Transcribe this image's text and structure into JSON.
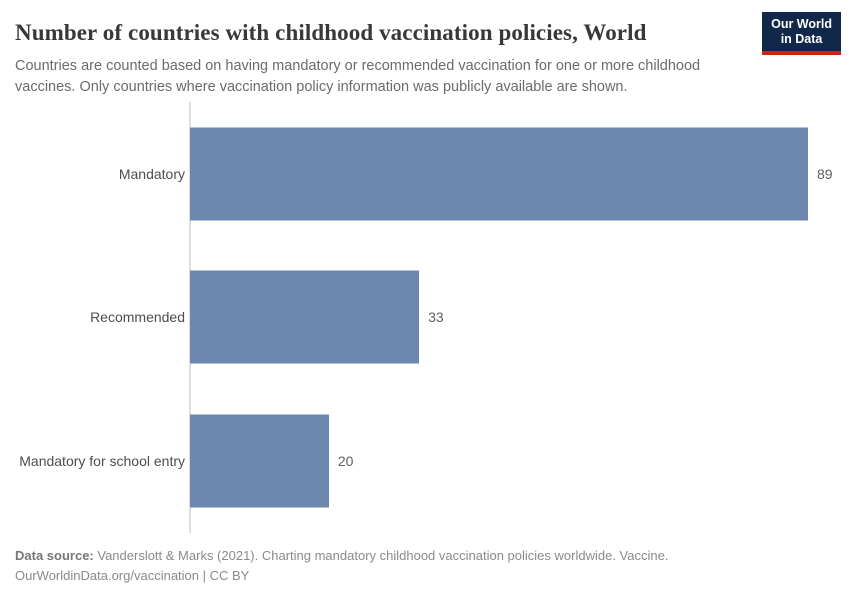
{
  "header": {
    "title": "Number of countries with childhood vaccination policies, World",
    "subtitle": "Countries are counted based on having mandatory or recommended vaccination for one or more childhood vaccines. Only countries where vaccination policy information was publicly available are shown.",
    "logo": {
      "line1": "Our World",
      "line2": "in Data"
    }
  },
  "chart_data": {
    "type": "bar",
    "orientation": "horizontal",
    "title": "Number of countries with childhood vaccination policies, World",
    "categories": [
      "Mandatory",
      "Recommended",
      "Mandatory for school entry"
    ],
    "values": [
      89,
      33,
      20
    ],
    "value_labels": [
      "89",
      "33",
      "20"
    ],
    "xlabel": "",
    "ylabel": "",
    "xlim": [
      0,
      89
    ],
    "grid": false,
    "legend": "none",
    "bar_color": "#6d87ae",
    "axis_line_color": "#dedede"
  },
  "footer": {
    "data_source_label": "Data source:",
    "data_source_text": " Vanderslott & Marks (2021). Charting mandatory childhood vaccination policies worldwide. Vaccine.",
    "attribution": "OurWorldinData.org/vaccination | CC BY"
  },
  "colors": {
    "bar": "#6d87ae",
    "logo_background": "#12284b",
    "logo_accent_red": "#c4261d",
    "title_text": "#383838",
    "subtitle_text": "#6b6b6b",
    "footer_text": "#8a8a8a"
  }
}
